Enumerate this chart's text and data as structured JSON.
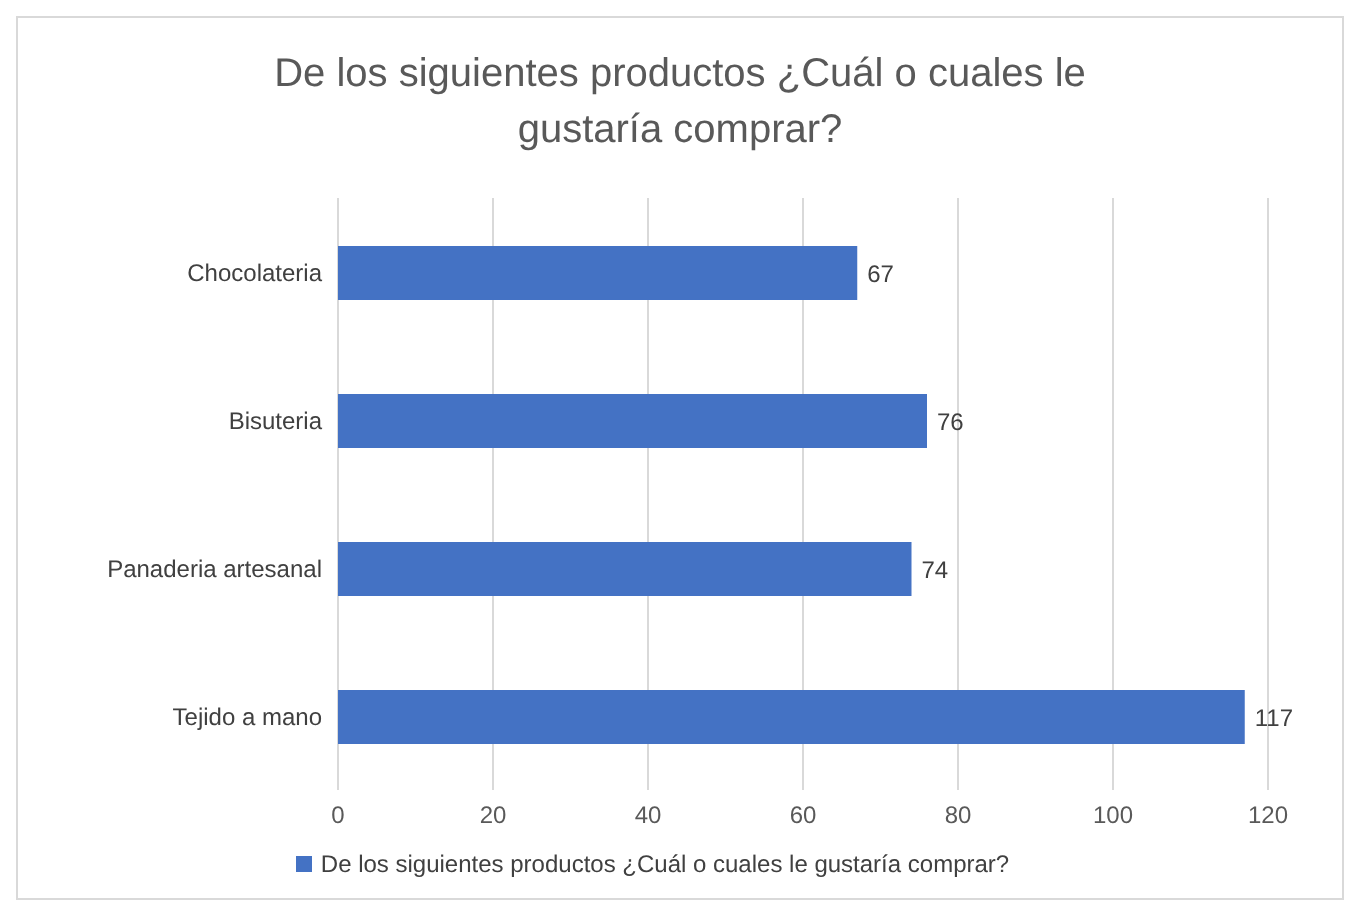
{
  "chart_data": {
    "type": "bar",
    "orientation": "horizontal",
    "title": "De los siguientes productos ¿Cuál o cuales le gustaría comprar?",
    "categories": [
      "Chocolateria",
      "Bisuteria",
      "Panaderia artesanal",
      "Tejido a mano"
    ],
    "series": [
      {
        "name": "De los siguientes productos ¿Cuál o cuales le gustaría comprar?",
        "color": "#4472c4",
        "values": [
          67,
          76,
          74,
          117
        ]
      }
    ],
    "xlim": [
      0,
      120
    ],
    "xticks": [
      0,
      20,
      40,
      60,
      80,
      100,
      120
    ],
    "grid": "x",
    "legend": "bottom",
    "data_labels": true
  }
}
